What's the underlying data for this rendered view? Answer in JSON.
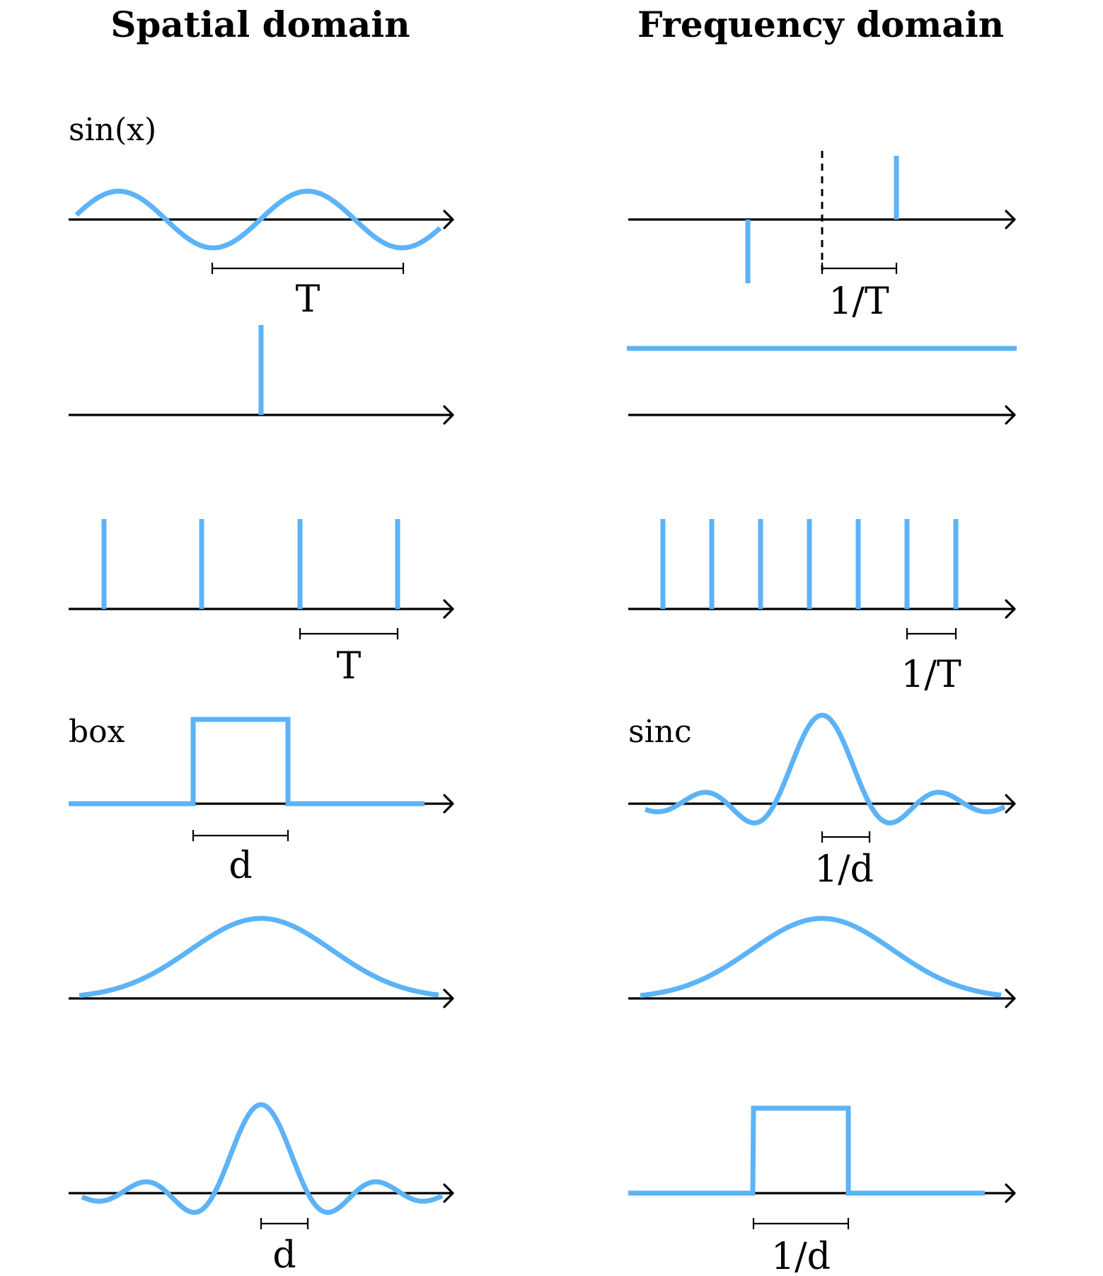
{
  "headings": {
    "spatial": "Spatial domain",
    "frequency": "Frequency domain"
  },
  "colors": {
    "signal": "#5cb3f8",
    "axis": "#000000"
  },
  "rows": [
    {
      "spatial_label": "sin(x)",
      "spatial_dim": "T",
      "frequency_label": "",
      "frequency_dim": "1/T"
    },
    {
      "spatial_label": "",
      "spatial_dim": "",
      "frequency_label": "",
      "frequency_dim": ""
    },
    {
      "spatial_label": "",
      "spatial_dim": "T",
      "frequency_label": "",
      "frequency_dim": "1/T"
    },
    {
      "spatial_label": "box",
      "spatial_dim": "d",
      "frequency_label": "sinc",
      "frequency_dim": "1/d"
    },
    {
      "spatial_label": "",
      "spatial_dim": "",
      "frequency_label": "",
      "frequency_dim": ""
    },
    {
      "spatial_label": "",
      "spatial_dim": "d",
      "frequency_label": "",
      "frequency_dim": "1/d"
    }
  ]
}
